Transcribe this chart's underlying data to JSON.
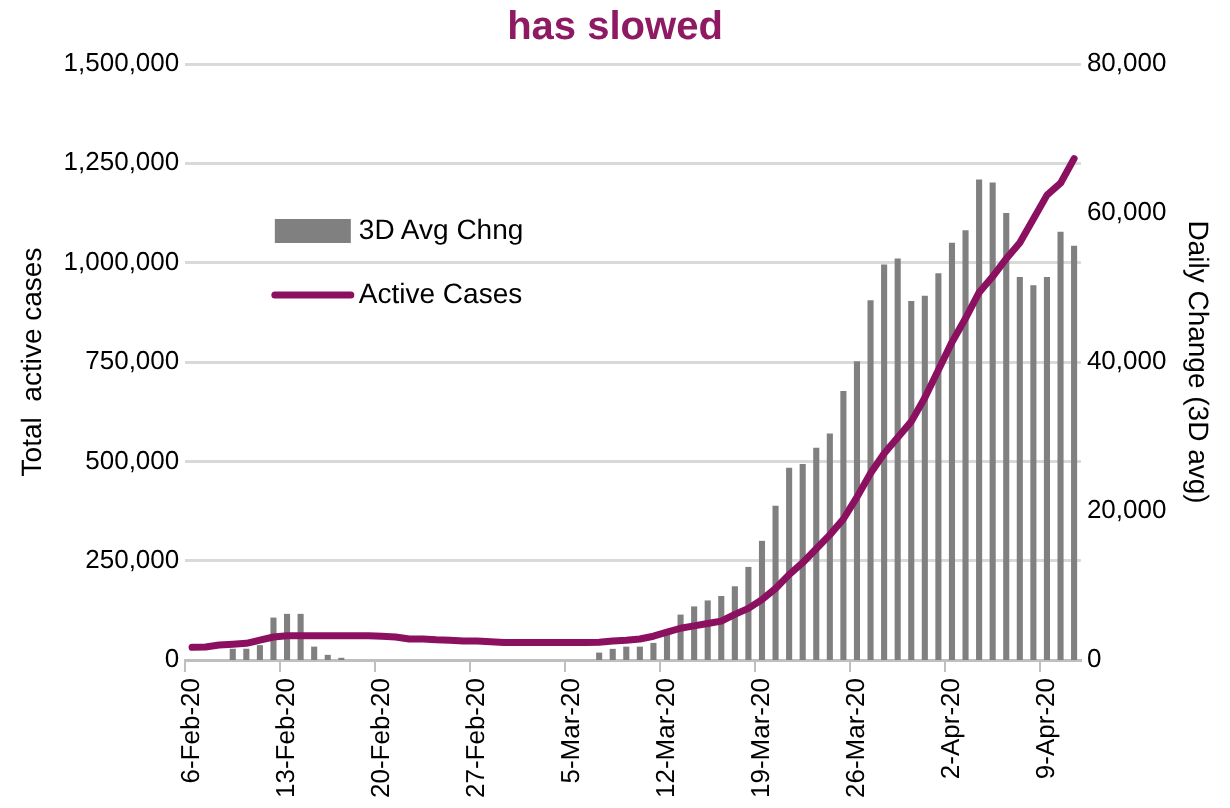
{
  "chart_data": {
    "type": "bar",
    "title": "has slowed",
    "ylabel": "Total  active cases",
    "y2label": "Daily Change (3D avg)",
    "categories": [
      "6-Feb-20",
      null,
      null,
      null,
      null,
      null,
      null,
      "13-Feb-20",
      null,
      null,
      null,
      null,
      null,
      null,
      "20-Feb-20",
      null,
      null,
      null,
      null,
      null,
      null,
      "27-Feb-20",
      null,
      null,
      null,
      null,
      null,
      null,
      "5-Mar-20",
      null,
      null,
      null,
      null,
      null,
      null,
      "12-Mar-20",
      null,
      null,
      null,
      null,
      null,
      null,
      "19-Mar-20",
      null,
      null,
      null,
      null,
      null,
      null,
      "26-Mar-20",
      null,
      null,
      null,
      null,
      null,
      null,
      "2-Apr-20",
      null,
      null,
      null,
      null,
      null,
      null,
      "9-Apr-20",
      null,
      null
    ],
    "series": [
      {
        "name": "3D Avg Chng",
        "axis": "y2",
        "color": "#808080",
        "values": [
          0,
          0,
          0,
          1500,
          1500,
          2000,
          5700,
          6200,
          6200,
          1800,
          700,
          300,
          0,
          0,
          0,
          0,
          0,
          0,
          0,
          0,
          0,
          0,
          0,
          0,
          0,
          0,
          0,
          0,
          0,
          0,
          1000,
          1500,
          1800,
          1800,
          2300,
          3400,
          6100,
          7200,
          8000,
          8600,
          9900,
          12500,
          16000,
          20700,
          25800,
          26300,
          28500,
          30400,
          36100,
          40100,
          48300,
          53100,
          53900,
          48200,
          48900,
          51900,
          56000,
          57700,
          64500,
          64100,
          60000,
          51400,
          50300,
          51400,
          57500,
          55600
        ]
      },
      {
        "name": "Active Cases",
        "type": "line",
        "axis": "y",
        "color": "#8b1060",
        "values": [
          32000,
          33000,
          38000,
          40000,
          42000,
          50000,
          58000,
          61000,
          61000,
          61000,
          61000,
          61000,
          61000,
          61000,
          60000,
          58000,
          53000,
          53000,
          51000,
          50000,
          48000,
          48000,
          46000,
          44000,
          44000,
          44000,
          44000,
          44000,
          44000,
          44000,
          45000,
          48000,
          50000,
          53000,
          60000,
          70000,
          80000,
          86000,
          92000,
          98000,
          115000,
          130000,
          152000,
          180000,
          215000,
          245000,
          280000,
          315000,
          355000,
          410000,
          470000,
          520000,
          560000,
          600000,
          660000,
          730000,
          800000,
          860000,
          925000,
          965000,
          1010000,
          1050000,
          1110000,
          1170000,
          1200000,
          1262000
        ]
      }
    ],
    "ylim": [
      0,
      1500000
    ],
    "yticks": [
      0,
      {
        "value": 250000,
        "label": "250,000"
      },
      {
        "value": 500000,
        "label": "500,000"
      },
      {
        "value": 750000,
        "label": "750,000"
      },
      {
        "value": 1000000,
        "label": "1,000,000"
      },
      {
        "value": 1250000,
        "label": "1,250,000"
      },
      {
        "value": 1500000,
        "label": "1,500,000"
      }
    ],
    "y2lim": [
      0,
      80000
    ],
    "y2ticks": [
      0,
      {
        "value": 20000,
        "label": "20,000"
      },
      {
        "value": 40000,
        "label": "40,000"
      },
      {
        "value": 60000,
        "label": "60,000"
      },
      {
        "value": 80000,
        "label": "80,000"
      }
    ],
    "grid": "y",
    "legend": "top left"
  }
}
